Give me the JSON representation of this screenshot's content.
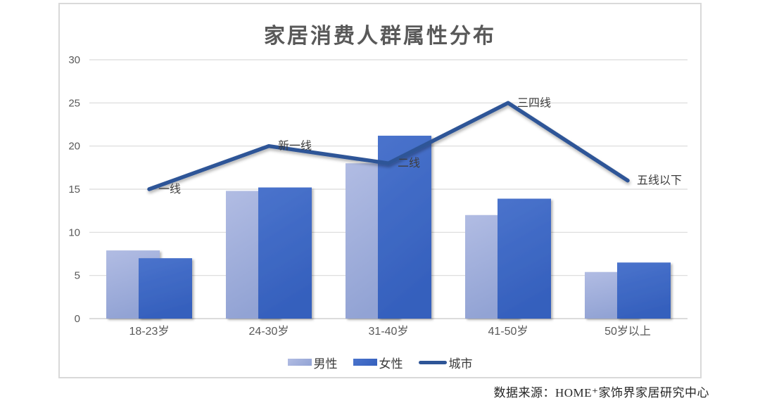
{
  "chart_data": {
    "type": "bar",
    "subtype": "grouped-bars-with-line-overlay",
    "title": "家居消费人群属性分布",
    "categories": [
      "18-23岁",
      "24-30岁",
      "31-40岁",
      "41-50岁",
      "50岁以上"
    ],
    "series": [
      {
        "name": "男性",
        "type": "bar",
        "values": [
          7.9,
          14.8,
          18,
          12,
          5.4
        ],
        "color_top": "#b1bce3",
        "color_bottom": "#92a3d4"
      },
      {
        "name": "女性",
        "type": "bar",
        "values": [
          7,
          15.2,
          21.2,
          13.9,
          6.5
        ],
        "color_top": "#4a73cc",
        "color_bottom": "#3560bd"
      },
      {
        "name": "城市",
        "type": "line",
        "values": [
          15,
          20,
          18,
          25,
          16
        ],
        "color": "#2e5597",
        "point_labels": [
          "一线",
          "新一线",
          "二线",
          "三四线",
          "五线以下"
        ]
      }
    ],
    "xlabel": "",
    "ylabel": "",
    "ylim": [
      0,
      30
    ],
    "yticks": [
      0,
      5,
      10,
      15,
      20,
      25,
      30
    ],
    "grid": "horizontal",
    "gridline_color": "#d9d9d9",
    "axis_line_color": "#c6c6c6",
    "legend_position": "bottom"
  },
  "source_note": "数据来源：HOME⁺家饰界家居研究中心"
}
